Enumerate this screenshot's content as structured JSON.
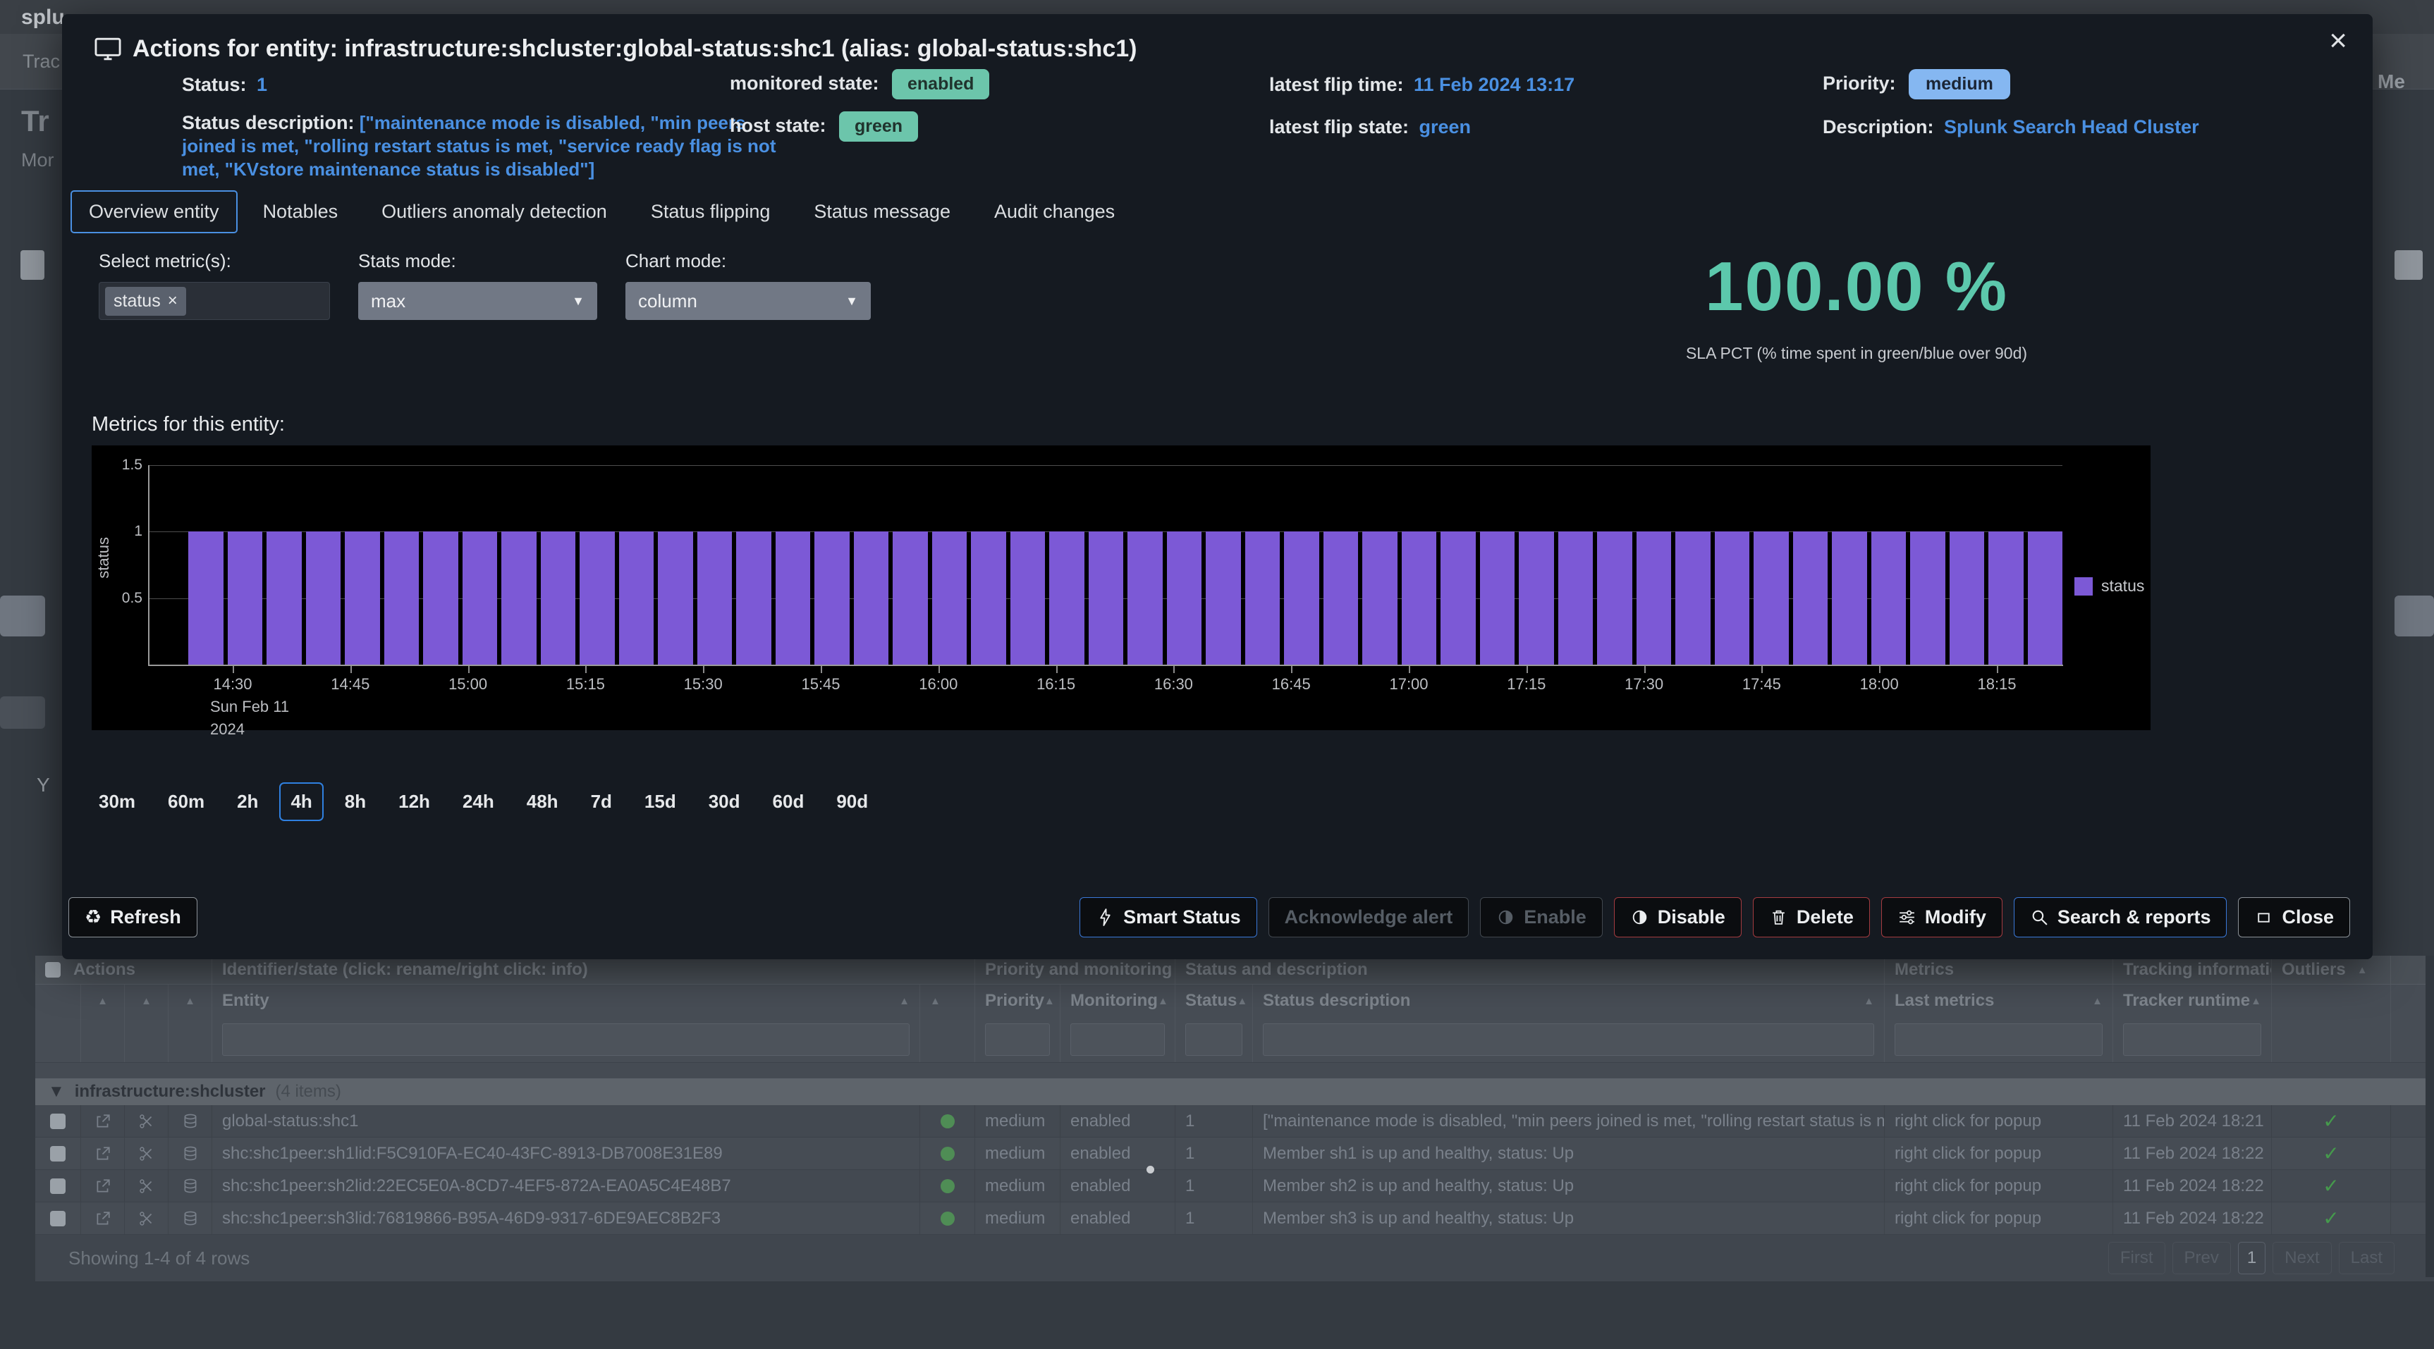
{
  "background": {
    "topbar": {
      "brand": "splu",
      "nav_item": "Trac"
    },
    "page": {
      "title": "Tr",
      "subtitle": "Mor",
      "left_label": "Y",
      "right_label": "Me"
    },
    "table": {
      "group_headers": [
        "Actions",
        "Identifier/state (click: rename/right click: info)",
        "Priority and monitoring state",
        "Status and description",
        "Metrics",
        "Tracking information",
        "Outliers"
      ],
      "columns": {
        "entity": "Entity",
        "priority": "Priority",
        "monitoring": "Monitoring",
        "status": "Status",
        "status_description": "Status description",
        "last_metrics": "Last metrics",
        "tracker_runtime": "Tracker runtime"
      },
      "group_row": {
        "collapse_icon": "▼",
        "label": "infrastructure:shcluster",
        "count": "(4 items)"
      },
      "rows": [
        {
          "entity": "global-status:shc1",
          "priority": "medium",
          "monitoring": "enabled",
          "status": "1",
          "status_description": "[\"maintenance mode is disabled, \"min peers joined is met, \"rolling restart status is met, \"s...",
          "last_metrics": "right click for popup",
          "tracker_runtime": "11 Feb 2024 18:21"
        },
        {
          "entity": "shc:shc1peer:sh1lid:F5C910FA-EC40-43FC-8913-DB7008E31E89",
          "priority": "medium",
          "monitoring": "enabled",
          "status": "1",
          "status_description": "Member sh1 is up and healthy, status: Up",
          "last_metrics": "right click for popup",
          "tracker_runtime": "11 Feb 2024 18:22"
        },
        {
          "entity": "shc:shc1peer:sh2lid:22EC5E0A-8CD7-4EF5-872A-EA0A5C4E48B7",
          "priority": "medium",
          "monitoring": "enabled",
          "status": "1",
          "status_description": "Member sh2 is up and healthy, status: Up",
          "last_metrics": "right click for popup",
          "tracker_runtime": "11 Feb 2024 18:22"
        },
        {
          "entity": "shc:shc1peer:sh3lid:76819866-B95A-46D9-9317-6DE9AEC8B2F3",
          "priority": "medium",
          "monitoring": "enabled",
          "status": "1",
          "status_description": "Member sh3 is up and healthy, status: Up",
          "last_metrics": "right click for popup",
          "tracker_runtime": "11 Feb 2024 18:22"
        }
      ],
      "footer": "Showing 1-4 of 4 rows",
      "pagination": [
        "First",
        "Prev",
        "1",
        "Next",
        "Last"
      ],
      "current_page": "1"
    }
  },
  "modal": {
    "title": "Actions for entity: infrastructure:shcluster:global-status:shc1 (alias: global-status:shc1)",
    "close_glyph": "×",
    "info": {
      "status_label": "Status:",
      "status_value": "1",
      "status_description_label": "Status description:",
      "status_description_value": "[\"maintenance mode is disabled, \"min peers joined is met, \"rolling restart status is met, \"service ready flag is not met, \"KVstore maintenance status is disabled\"]",
      "monitored_state_label": "monitored state:",
      "monitored_state_value": "enabled",
      "host_state_label": "host state:",
      "host_state_value": "green",
      "latest_flip_time_label": "latest flip time:",
      "latest_flip_time_value": "11 Feb 2024 13:17",
      "latest_flip_state_label": "latest flip state:",
      "latest_flip_state_value": "green",
      "priority_label": "Priority:",
      "priority_value": "medium",
      "description_label": "Description:",
      "description_value": "Splunk Search Head Cluster"
    },
    "tabs": [
      "Overview entity",
      "Notables",
      "Outliers anomaly detection",
      "Status flipping",
      "Status message",
      "Audit changes"
    ],
    "active_tab": "Overview entity",
    "controls": {
      "select_metrics_label": "Select metric(s):",
      "metric_tag": "status",
      "metric_tag_remove": "×",
      "stats_mode_label": "Stats mode:",
      "stats_mode_value": "max",
      "chart_mode_label": "Chart mode:",
      "chart_mode_value": "column"
    },
    "sla": {
      "value": "100.00 %",
      "caption": "SLA PCT (% time spent in green/blue over 90d)"
    },
    "metrics_heading": "Metrics for this entity:",
    "time_ranges": [
      "30m",
      "60m",
      "2h",
      "4h",
      "8h",
      "12h",
      "24h",
      "48h",
      "7d",
      "15d",
      "30d",
      "60d",
      "90d"
    ],
    "selected_range": "4h",
    "footer_buttons": {
      "refresh": {
        "label": "Refresh",
        "icon": "refresh-icon",
        "glyph": "♻"
      },
      "right": [
        {
          "label": "Smart Status",
          "icon": "lightning-icon",
          "style": "blue",
          "enabled": true
        },
        {
          "label": "Acknowledge alert",
          "icon": "",
          "style": "disabled",
          "enabled": false
        },
        {
          "label": "Enable",
          "icon": "toggle-icon",
          "style": "disabled",
          "enabled": false
        },
        {
          "label": "Disable",
          "icon": "toggle-icon",
          "style": "red",
          "enabled": true
        },
        {
          "label": "Delete",
          "icon": "trash-icon",
          "style": "red",
          "enabled": true
        },
        {
          "label": "Modify",
          "icon": "sliders-icon",
          "style": "red",
          "enabled": true
        },
        {
          "label": "Search & reports",
          "icon": "search-icon",
          "style": "blue",
          "enabled": true
        },
        {
          "label": "Close",
          "icon": "window-icon",
          "style": "gray",
          "enabled": true
        }
      ]
    }
  },
  "chart_data": {
    "type": "bar",
    "title": "",
    "xlabel": "",
    "ylabel": "status",
    "ylim": [
      0,
      1.5
    ],
    "yticks": [
      0.5,
      1,
      1.5
    ],
    "grid": true,
    "legend": [
      "status"
    ],
    "legend_position": "right",
    "bar_color": "#7c59d6",
    "x_ticks": [
      "14:30",
      "14:45",
      "15:00",
      "15:15",
      "15:30",
      "15:45",
      "16:00",
      "16:15",
      "16:30",
      "16:45",
      "17:00",
      "17:15",
      "17:30",
      "17:45",
      "18:00",
      "18:15"
    ],
    "x_start_sublabels": [
      "Sun Feb 11",
      "2024"
    ],
    "series": [
      {
        "name": "status",
        "values": [
          1,
          1,
          1,
          1,
          1,
          1,
          1,
          1,
          1,
          1,
          1,
          1,
          1,
          1,
          1,
          1,
          1,
          1,
          1,
          1,
          1,
          1,
          1,
          1,
          1,
          1,
          1,
          1,
          1,
          1,
          1,
          1,
          1,
          1,
          1,
          1,
          1,
          1,
          1,
          1,
          1,
          1,
          1,
          1,
          1,
          1,
          1,
          1
        ]
      }
    ]
  },
  "colors": {
    "accent_blue": "#4a90e2",
    "teal_badge": "#6cc5ab",
    "priority_badge": "#85b7f1",
    "bar_purple": "#7c59d6",
    "danger_red": "#a43b40",
    "sla_teal": "#5cc8ac"
  }
}
